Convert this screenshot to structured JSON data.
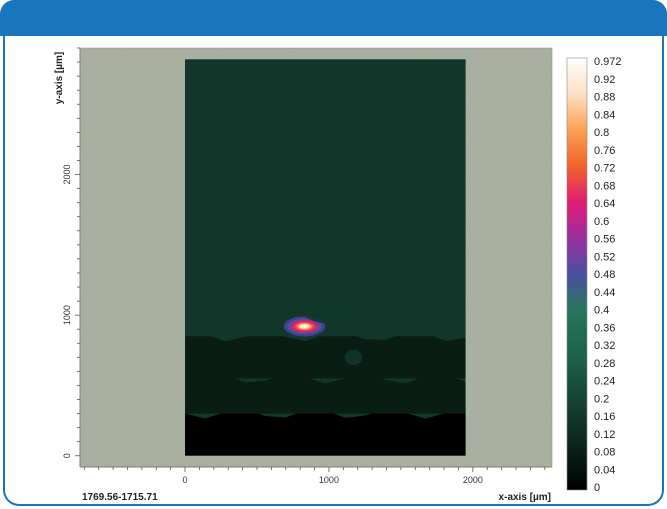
{
  "colors": {
    "header_bar": "#1b75bc",
    "panel_border": "#1b75bc",
    "background_image_tone": "#a5ad9c",
    "colormap": [
      "#000000",
      "#0a1d15",
      "#12372a",
      "#18503c",
      "#1e684d",
      "#27755c",
      "#4a4fa0",
      "#9b2f9e",
      "#e01c74",
      "#f0642a",
      "#fba055",
      "#fde0c2",
      "#ffffff"
    ]
  },
  "sample_label": "1769.56-1715.71",
  "chart_data": {
    "type": "heatmap",
    "title": "",
    "xlabel": "x-axis [µm]",
    "ylabel": "y-axis [µm]",
    "xlim": [
      -730,
      2550
    ],
    "ylim": [
      -80,
      2900
    ],
    "map_extent": {
      "x": [
        0,
        1950
      ],
      "y": [
        0,
        2820
      ]
    },
    "x_ticks": [
      0,
      1000,
      2000
    ],
    "x_tick_labels": [
      "0",
      "1000",
      "2000"
    ],
    "y_ticks": [
      0,
      1000,
      2000
    ],
    "y_tick_labels": [
      "0",
      "1000",
      "2000"
    ],
    "colorbar": {
      "min": 0,
      "max": 0.972,
      "labels": [
        "0.972",
        "0.92",
        "0.88",
        "0.84",
        "0.8",
        "0.76",
        "0.72",
        "0.68",
        "0.64",
        "0.6",
        "0.56",
        "0.52",
        "0.48",
        "0.44",
        "0.4",
        "0.36",
        "0.32",
        "0.28",
        "0.24",
        "0.2",
        "0.16",
        "0.12",
        "0.08",
        "0.04",
        "0"
      ]
    },
    "bands": [
      {
        "y": [
          0,
          300
        ],
        "value": 0.02
      },
      {
        "y": [
          300,
          550
        ],
        "value": 0.06
      },
      {
        "y": [
          550,
          850
        ],
        "value": 0.1
      },
      {
        "y": [
          850,
          1500
        ],
        "value": 0.14
      },
      {
        "y": [
          1500,
          2820
        ],
        "value": 0.17
      }
    ],
    "features": [
      {
        "x": 830,
        "y": 920,
        "rx": 120,
        "ry": 55,
        "value": 0.972
      },
      {
        "x": 1170,
        "y": 700,
        "rx": 60,
        "ry": 55,
        "value": 0.2
      },
      {
        "x": 1000,
        "y": 1050,
        "rx": 200,
        "ry": 110,
        "value": 0.2
      },
      {
        "x": 800,
        "y": 2100,
        "rx": 60,
        "ry": 60,
        "value": 0.2
      },
      {
        "x": 1650,
        "y": 1750,
        "rx": 90,
        "ry": 70,
        "value": 0.2
      },
      {
        "x": 100,
        "y": 1780,
        "rx": 50,
        "ry": 50,
        "value": 0.2
      },
      {
        "x": 1300,
        "y": 1900,
        "rx": 70,
        "ry": 50,
        "value": 0.2
      }
    ]
  }
}
